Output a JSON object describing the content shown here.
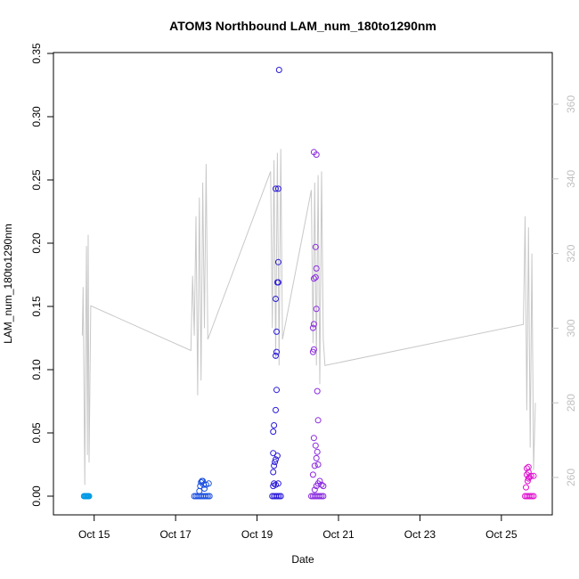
{
  "chart_data": {
    "type": "scatter",
    "title": "ATOM3 Northbound LAM_num_180to1290nm",
    "xlabel": "Date",
    "ylabel": "LAM_num_180to1290nm",
    "x_is_date": true,
    "xlim": [
      "2016-10-14T00:00",
      "2016-10-26T06:00"
    ],
    "ylim": [
      0,
      0.35
    ],
    "x_ticks": [
      {
        "date": "2016-10-15",
        "label": "Oct 15"
      },
      {
        "date": "2016-10-17",
        "label": "Oct 17"
      },
      {
        "date": "2016-10-19",
        "label": "Oct 19"
      },
      {
        "date": "2016-10-21",
        "label": "Oct 21"
      },
      {
        "date": "2016-10-23",
        "label": "Oct 23"
      },
      {
        "date": "2016-10-25",
        "label": "Oct 25"
      }
    ],
    "y_ticks": [
      0.0,
      0.05,
      0.1,
      0.15,
      0.2,
      0.25,
      0.3,
      0.35
    ],
    "y_tick_labels": [
      "0.00",
      "0.05",
      "0.10",
      "0.15",
      "0.20",
      "0.25",
      "0.30",
      "0.35"
    ],
    "grid": false,
    "secondary_axis": {
      "side": "right",
      "color": "#c0c0c0",
      "ylim": [
        252,
        370
      ],
      "ticks": [
        260,
        280,
        300,
        320,
        340,
        360
      ],
      "tick_labels": [
        "260",
        "280",
        "300",
        "320",
        "340",
        "360"
      ]
    },
    "series": [
      {
        "color": "#0099e6",
        "points": [
          [
            "2016-10-14T18:00",
            0
          ],
          [
            "2016-10-14T18:30",
            0
          ],
          [
            "2016-10-14T19:00",
            0
          ],
          [
            "2016-10-14T19:30",
            0
          ],
          [
            "2016-10-14T20:00",
            0
          ],
          [
            "2016-10-14T20:30",
            0
          ],
          [
            "2016-10-14T21:00",
            0
          ]
        ]
      },
      {
        "color": "#1a4fe0",
        "points": [
          [
            "2016-10-17T11:00",
            0
          ],
          [
            "2016-10-17T12:00",
            0
          ],
          [
            "2016-10-17T13:00",
            0
          ],
          [
            "2016-10-17T14:00",
            0
          ],
          [
            "2016-10-17T15:00",
            0
          ],
          [
            "2016-10-17T16:00",
            0
          ],
          [
            "2016-10-17T17:00",
            0
          ],
          [
            "2016-10-17T18:00",
            0
          ],
          [
            "2016-10-17T19:00",
            0
          ],
          [
            "2016-10-17T20:00",
            0
          ],
          [
            "2016-10-17T14:00",
            0.004
          ],
          [
            "2016-10-17T14:30",
            0.008
          ],
          [
            "2016-10-17T15:00",
            0.011
          ],
          [
            "2016-10-17T15:30",
            0.012
          ],
          [
            "2016-10-17T16:00",
            0.012
          ],
          [
            "2016-10-17T16:30",
            0.009
          ],
          [
            "2016-10-17T17:00",
            0.006
          ],
          [
            "2016-10-17T18:00",
            0.009
          ],
          [
            "2016-10-17T19:30",
            0.01
          ]
        ]
      },
      {
        "color": "#2a1ad8",
        "points": [
          [
            "2016-10-19T09:00",
            0
          ],
          [
            "2016-10-19T10:00",
            0
          ],
          [
            "2016-10-19T11:00",
            0
          ],
          [
            "2016-10-19T12:00",
            0
          ],
          [
            "2016-10-19T13:00",
            0
          ],
          [
            "2016-10-19T14:00",
            0
          ],
          [
            "2016-10-19T09:30",
            0.008
          ],
          [
            "2016-10-19T10:00",
            0.01
          ],
          [
            "2016-10-19T11:00",
            0.009
          ],
          [
            "2016-10-19T12:30",
            0.01
          ],
          [
            "2016-10-19T09:30",
            0.019
          ],
          [
            "2016-10-19T10:00",
            0.024
          ],
          [
            "2016-10-19T10:30",
            0.027
          ],
          [
            "2016-10-19T11:00",
            0.029
          ],
          [
            "2016-10-19T12:00",
            0.032
          ],
          [
            "2016-10-19T09:30",
            0.034
          ],
          [
            "2016-10-19T09:30",
            0.051
          ],
          [
            "2016-10-19T10:00",
            0.056
          ],
          [
            "2016-10-19T11:00",
            0.068
          ],
          [
            "2016-10-19T11:30",
            0.084
          ],
          [
            "2016-10-19T11:00",
            0.111
          ],
          [
            "2016-10-19T11:30",
            0.114
          ],
          [
            "2016-10-19T11:30",
            0.13
          ],
          [
            "2016-10-19T11:00",
            0.156
          ],
          [
            "2016-10-19T12:30",
            0.169
          ],
          [
            "2016-10-19T12:00",
            0.169
          ],
          [
            "2016-10-19T12:30",
            0.185
          ],
          [
            "2016-10-19T11:00",
            0.243
          ],
          [
            "2016-10-19T12:30",
            0.243
          ],
          [
            "2016-10-19T13:00",
            0.337
          ]
        ]
      },
      {
        "color": "#8a2ae0",
        "points": [
          [
            "2016-10-20T08:00",
            0
          ],
          [
            "2016-10-20T09:00",
            0
          ],
          [
            "2016-10-20T10:00",
            0
          ],
          [
            "2016-10-20T11:00",
            0
          ],
          [
            "2016-10-20T12:00",
            0
          ],
          [
            "2016-10-20T13:00",
            0
          ],
          [
            "2016-10-20T14:00",
            0
          ],
          [
            "2016-10-20T15:00",
            0
          ],
          [
            "2016-10-20T10:00",
            0.005
          ],
          [
            "2016-10-20T11:00",
            0.008
          ],
          [
            "2016-10-20T12:00",
            0.01
          ],
          [
            "2016-10-20T13:00",
            0.012
          ],
          [
            "2016-10-20T14:00",
            0.009
          ],
          [
            "2016-10-20T15:00",
            0.008
          ],
          [
            "2016-10-20T09:00",
            0.017
          ],
          [
            "2016-10-20T10:00",
            0.024
          ],
          [
            "2016-10-20T11:00",
            0.03
          ],
          [
            "2016-10-20T11:30",
            0.035
          ],
          [
            "2016-10-20T10:30",
            0.04
          ],
          [
            "2016-10-20T09:30",
            0.046
          ],
          [
            "2016-10-20T12:00",
            0.025
          ],
          [
            "2016-10-20T12:00",
            0.06
          ],
          [
            "2016-10-20T11:30",
            0.083
          ],
          [
            "2016-10-20T09:00",
            0.114
          ],
          [
            "2016-10-20T09:30",
            0.116
          ],
          [
            "2016-10-20T09:00",
            0.133
          ],
          [
            "2016-10-20T09:30",
            0.136
          ],
          [
            "2016-10-20T11:00",
            0.148
          ],
          [
            "2016-10-20T09:30",
            0.172
          ],
          [
            "2016-10-20T10:30",
            0.173
          ],
          [
            "2016-10-20T11:00",
            0.18
          ],
          [
            "2016-10-20T10:30",
            0.197
          ],
          [
            "2016-10-20T09:30",
            0.272
          ],
          [
            "2016-10-20T11:00",
            0.27
          ]
        ]
      },
      {
        "color": "#e010d0",
        "points": [
          [
            "2016-10-25T14:00",
            0
          ],
          [
            "2016-10-25T15:00",
            0
          ],
          [
            "2016-10-25T16:00",
            0
          ],
          [
            "2016-10-25T17:00",
            0
          ],
          [
            "2016-10-25T18:00",
            0
          ],
          [
            "2016-10-25T19:00",
            0
          ],
          [
            "2016-10-25T14:30",
            0.007
          ],
          [
            "2016-10-25T15:30",
            0.012
          ],
          [
            "2016-10-25T16:00",
            0.014
          ],
          [
            "2016-10-25T16:30",
            0.015
          ],
          [
            "2016-10-25T17:30",
            0.016
          ],
          [
            "2016-10-25T15:00",
            0.017
          ],
          [
            "2016-10-25T16:00",
            0.019
          ],
          [
            "2016-10-25T15:00",
            0.022
          ],
          [
            "2016-10-25T16:00",
            0.023
          ],
          [
            "2016-10-25T19:00",
            0.016
          ]
        ]
      }
    ],
    "secondary_series": {
      "color": "#c8c8c8",
      "points": [
        [
          "2016-10-14T17:00",
          298
        ],
        [
          "2016-10-14T17:30",
          311
        ],
        [
          "2016-10-14T18:00",
          284
        ],
        [
          "2016-10-14T18:30",
          258
        ],
        [
          "2016-10-14T19:00",
          300
        ],
        [
          "2016-10-14T19:30",
          322
        ],
        [
          "2016-10-14T20:00",
          266
        ],
        [
          "2016-10-14T20:30",
          325
        ],
        [
          "2016-10-14T21:00",
          264
        ],
        [
          "2016-10-14T22:00",
          306
        ],
        [
          "2016-10-17T09:00",
          294
        ],
        [
          "2016-10-17T10:00",
          314
        ],
        [
          "2016-10-17T11:00",
          298
        ],
        [
          "2016-10-17T12:00",
          330
        ],
        [
          "2016-10-17T13:00",
          282
        ],
        [
          "2016-10-17T14:00",
          335
        ],
        [
          "2016-10-17T15:00",
          286
        ],
        [
          "2016-10-17T16:00",
          339
        ],
        [
          "2016-10-17T17:00",
          300
        ],
        [
          "2016-10-17T18:00",
          344
        ],
        [
          "2016-10-17T19:00",
          297
        ],
        [
          "2016-10-19T08:00",
          342
        ],
        [
          "2016-10-19T09:00",
          300
        ],
        [
          "2016-10-19T10:00",
          345
        ],
        [
          "2016-10-19T11:00",
          292
        ],
        [
          "2016-10-19T12:00",
          347
        ],
        [
          "2016-10-19T13:00",
          290
        ],
        [
          "2016-10-19T14:00",
          348
        ],
        [
          "2016-10-19T15:00",
          297
        ],
        [
          "2016-10-20T08:00",
          337
        ],
        [
          "2016-10-20T09:00",
          296
        ],
        [
          "2016-10-20T10:00",
          339
        ],
        [
          "2016-10-20T11:00",
          290
        ],
        [
          "2016-10-20T12:00",
          341
        ],
        [
          "2016-10-20T13:00",
          285
        ],
        [
          "2016-10-20T14:00",
          342
        ],
        [
          "2016-10-20T15:00",
          297
        ],
        [
          "2016-10-20T16:00",
          290
        ],
        [
          "2016-10-25T13:00",
          301
        ],
        [
          "2016-10-25T14:00",
          330
        ],
        [
          "2016-10-25T15:00",
          278
        ],
        [
          "2016-10-25T16:00",
          327
        ],
        [
          "2016-10-25T17:00",
          268
        ],
        [
          "2016-10-25T18:00",
          320
        ],
        [
          "2016-10-25T19:00",
          262
        ],
        [
          "2016-10-25T20:00",
          280
        ]
      ]
    }
  }
}
